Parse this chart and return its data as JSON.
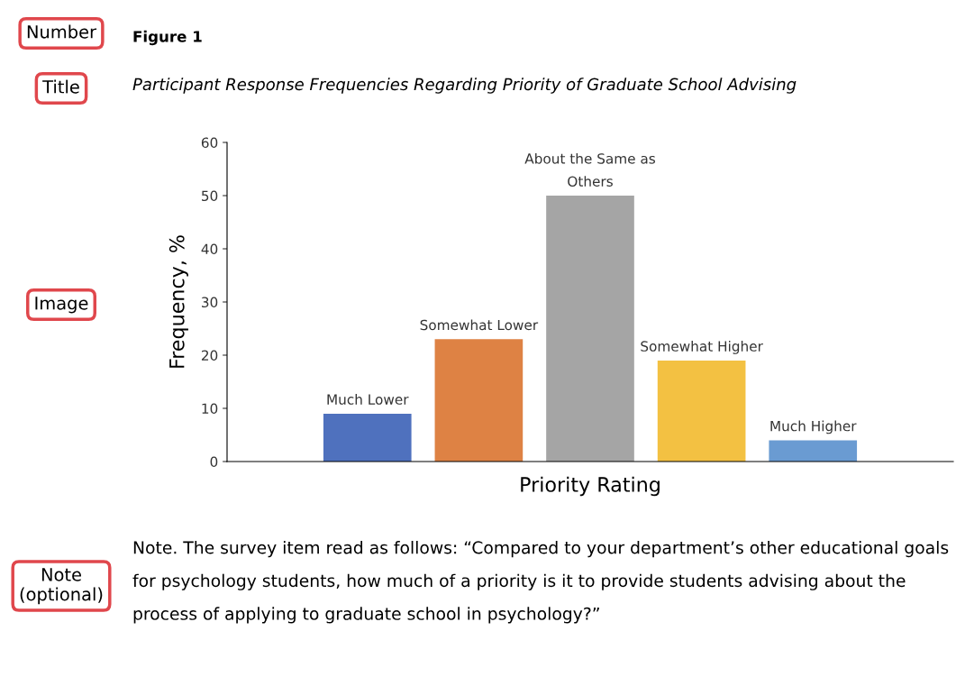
{
  "chart_data": {
    "type": "bar",
    "title": "Figure 1",
    "subtitle": "Participant Response Frequencies Regarding Priority of Graduate School Advising",
    "xlabel": "Priority Rating",
    "ylabel": "Frequency, %",
    "categories": [
      "Much Lower",
      "Somewhat Lower",
      "About the Same as\nOthers",
      "Somewhat Higher",
      "Much Higher"
    ],
    "values": [
      9,
      23,
      50,
      19,
      4
    ],
    "colors": [
      "#4f71be",
      "#de8244",
      "#a5a5a5",
      "#f3c142",
      "#6a9bd2"
    ],
    "ylim": [
      0,
      60
    ],
    "yticks": [
      0,
      10,
      20,
      30,
      40,
      50,
      60
    ],
    "grid": false,
    "legend": false,
    "annotations": [
      "Number",
      "Title",
      "Image",
      "Note\n(optional)",
      "Note. The survey item read as follows: “Compared to your department’s other educational goals for psychology students, how much of a priority is it to provide students advising about the process of applying to graduate school in psychology?”"
    ]
  }
}
